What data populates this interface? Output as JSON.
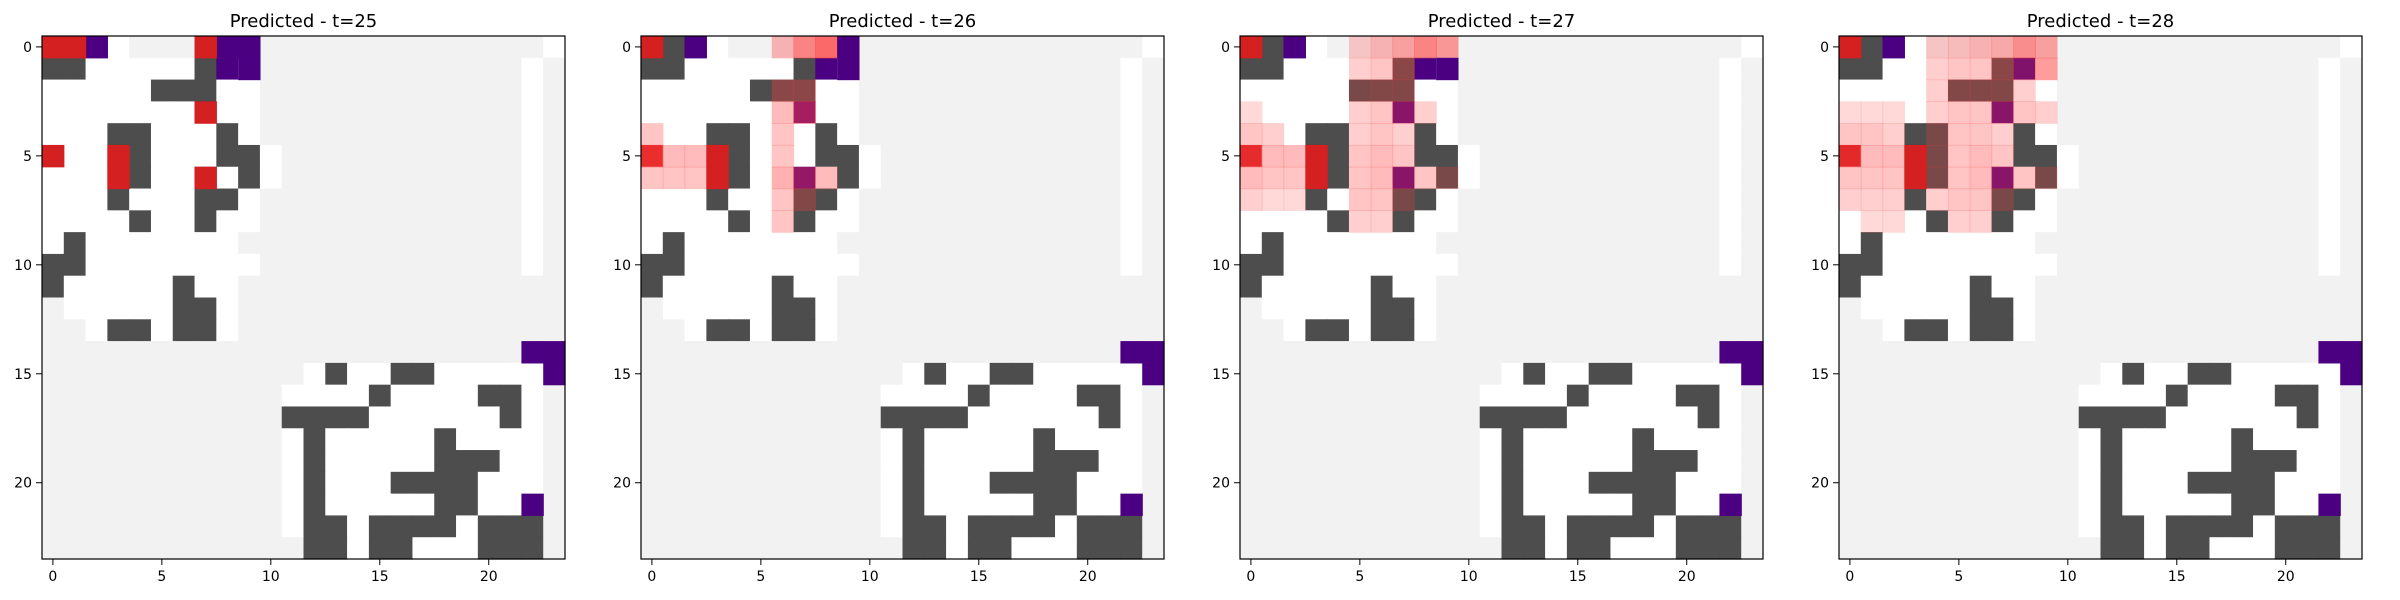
{
  "colors": {
    "wall": "#4d4d4d",
    "free": "#ffffff",
    "unknown": "#f2f2f2",
    "goal": "#4b0082",
    "agent": "#d42020",
    "axis": "#000000"
  },
  "chart_data": [
    {
      "type": "heatmap",
      "title": "Predicted - t=25",
      "xticks": [
        0,
        5,
        10,
        15,
        20
      ],
      "yticks": [
        0,
        5,
        10,
        15,
        20
      ],
      "grid": false,
      "cols": 24,
      "rows": 24,
      "cells": [
        "AWGUFFFFFFFFFFFFFFFFFFFU",
        "WW.....WGUFFFFFFFFFFFFUF",
        ".....WWW..FFFFFFFFFFFFUF",
        ".......G..FFFFFFFFFFFFUF",
        "...WW...W.FFFFFFFFFFFFUF",
        "A..RW...WW.FFFFFFFFFFFUF",
        "...RW..G.W.FFFFFFFFFFFUF",
        "...W...WW.FFFFFFFFFFFFUF",
        "....W..W..FFFFFFFFFFFFUF",
        ".W.......FFFFFFFFFFFFFUF",
        "WW........FFFFFFFFFFFFUF",
        "W.....W..FFFFFFFFFFFFFFF",
        "F.....WW.FFFFFFFFFFFFFFF",
        "FF.WW.WW.FFFFFFFFFFFFFFF",
        "FFFFFFFFFFFFFFFFFFFFFFUU",
        "FFFFFFFFFFFF.W..WW..UUUU",
        "FFFFFFFFFFF....W....WWUF",
        "FFFFFFFFFFFWWWW......W.F",
        "FFFFFFFFFFF.W.....W....F",
        "FFFFFFFFFFF.W.....WWW..F",
        "FFFFFFFFFFF.W...WWWW...F",
        "FFFFFFFFFFF.W.....WW..UF",
        "FFFFFFFFFFF.WW.WWWW.WWWF",
        "FFFFFFFFFFFFWW.WW...WWWF"
      ],
      "agent": [
        [
          0,
          0
        ],
        [
          1,
          0
        ],
        [
          7,
          0
        ],
        [
          7,
          3
        ],
        [
          0,
          5
        ],
        [
          3,
          5
        ],
        [
          3,
          6
        ],
        [
          7,
          6
        ]
      ],
      "goal": [
        [
          2,
          0
        ],
        [
          8,
          0
        ],
        [
          9,
          0
        ],
        [
          9,
          1
        ],
        [
          22,
          14
        ],
        [
          23,
          14
        ],
        [
          23,
          15
        ],
        [
          22,
          21
        ]
      ],
      "heat": []
    },
    {
      "type": "heatmap",
      "title": "Predicted - t=26",
      "xticks": [
        0,
        5,
        10,
        15,
        20
      ],
      "yticks": [
        0,
        5,
        10,
        15,
        20
      ],
      "grid": false,
      "cols": 24,
      "rows": 24,
      "cells": "same",
      "agent": [
        [
          0,
          0
        ],
        [
          3,
          5
        ],
        [
          3,
          6
        ]
      ],
      "goal": [
        [
          2,
          0
        ],
        [
          9,
          0
        ],
        [
          9,
          1
        ],
        [
          22,
          14
        ],
        [
          23,
          14
        ],
        [
          23,
          15
        ],
        [
          22,
          21
        ]
      ],
      "heat": [
        [
          6,
          0,
          0.35
        ],
        [
          7,
          0,
          0.6
        ],
        [
          8,
          0,
          0.75
        ],
        [
          6,
          2,
          0.35
        ],
        [
          7,
          2,
          0.35
        ],
        [
          6,
          3,
          0.35
        ],
        [
          7,
          3,
          0.5
        ],
        [
          0,
          4,
          0.3
        ],
        [
          0,
          5,
          0.5
        ],
        [
          1,
          5,
          0.35
        ],
        [
          2,
          5,
          0.35
        ],
        [
          0,
          6,
          0.3
        ],
        [
          1,
          6,
          0.3
        ],
        [
          2,
          6,
          0.3
        ],
        [
          6,
          4,
          0.3
        ],
        [
          6,
          5,
          0.3
        ],
        [
          6,
          6,
          0.4
        ],
        [
          7,
          6,
          0.4
        ],
        [
          8,
          6,
          0.35
        ],
        [
          6,
          7,
          0.3
        ],
        [
          7,
          7,
          0.3
        ],
        [
          6,
          8,
          0.3
        ]
      ]
    },
    {
      "type": "heatmap",
      "title": "Predicted - t=27",
      "xticks": [
        0,
        5,
        10,
        15,
        20
      ],
      "yticks": [
        0,
        5,
        10,
        15,
        20
      ],
      "grid": false,
      "cols": 24,
      "rows": 24,
      "cells": "same",
      "agent": [
        [
          0,
          0
        ],
        [
          3,
          5
        ],
        [
          3,
          6
        ]
      ],
      "goal": [
        [
          2,
          0
        ],
        [
          9,
          1
        ],
        [
          22,
          14
        ],
        [
          23,
          14
        ],
        [
          23,
          15
        ],
        [
          22,
          21
        ]
      ],
      "heat": [
        [
          5,
          0,
          0.25
        ],
        [
          6,
          0,
          0.35
        ],
        [
          7,
          0,
          0.45
        ],
        [
          8,
          0,
          0.6
        ],
        [
          9,
          0,
          0.5
        ],
        [
          5,
          1,
          0.25
        ],
        [
          6,
          1,
          0.3
        ],
        [
          7,
          1,
          0.35
        ],
        [
          5,
          2,
          0.25
        ],
        [
          6,
          2,
          0.3
        ],
        [
          7,
          2,
          0.3
        ],
        [
          5,
          3,
          0.25
        ],
        [
          6,
          3,
          0.3
        ],
        [
          7,
          3,
          0.35
        ],
        [
          8,
          3,
          0.25
        ],
        [
          0,
          3,
          0.2
        ],
        [
          0,
          4,
          0.3
        ],
        [
          1,
          4,
          0.25
        ],
        [
          0,
          5,
          0.4
        ],
        [
          1,
          5,
          0.35
        ],
        [
          2,
          5,
          0.35
        ],
        [
          0,
          6,
          0.35
        ],
        [
          1,
          6,
          0.3
        ],
        [
          2,
          6,
          0.3
        ],
        [
          0,
          7,
          0.25
        ],
        [
          1,
          7,
          0.2
        ],
        [
          2,
          7,
          0.2
        ],
        [
          5,
          4,
          0.25
        ],
        [
          6,
          4,
          0.3
        ],
        [
          7,
          4,
          0.25
        ],
        [
          5,
          5,
          0.3
        ],
        [
          6,
          5,
          0.35
        ],
        [
          7,
          5,
          0.3
        ],
        [
          5,
          6,
          0.3
        ],
        [
          6,
          6,
          0.35
        ],
        [
          7,
          6,
          0.35
        ],
        [
          8,
          6,
          0.3
        ],
        [
          9,
          6,
          0.25
        ],
        [
          5,
          7,
          0.3
        ],
        [
          6,
          7,
          0.3
        ],
        [
          7,
          7,
          0.25
        ],
        [
          5,
          8,
          0.25
        ],
        [
          6,
          8,
          0.25
        ]
      ]
    },
    {
      "type": "heatmap",
      "title": "Predicted - t=28",
      "xticks": [
        0,
        5,
        10,
        15,
        20
      ],
      "yticks": [
        0,
        5,
        10,
        15,
        20
      ],
      "grid": false,
      "cols": 24,
      "rows": 24,
      "cells": "same",
      "agent": [
        [
          0,
          0
        ],
        [
          3,
          5
        ],
        [
          3,
          6
        ]
      ],
      "goal": [
        [
          2,
          0
        ],
        [
          22,
          14
        ],
        [
          23,
          14
        ],
        [
          23,
          15
        ],
        [
          22,
          21
        ]
      ],
      "heat": [
        [
          4,
          0,
          0.25
        ],
        [
          5,
          0,
          0.3
        ],
        [
          6,
          0,
          0.35
        ],
        [
          7,
          0,
          0.4
        ],
        [
          8,
          0,
          0.55
        ],
        [
          9,
          0,
          0.45
        ],
        [
          4,
          1,
          0.25
        ],
        [
          5,
          1,
          0.3
        ],
        [
          6,
          1,
          0.3
        ],
        [
          7,
          1,
          0.35
        ],
        [
          8,
          1,
          0.3
        ],
        [
          9,
          1,
          0.5
        ],
        [
          4,
          2,
          0.25
        ],
        [
          5,
          2,
          0.3
        ],
        [
          6,
          2,
          0.3
        ],
        [
          7,
          2,
          0.3
        ],
        [
          8,
          2,
          0.25
        ],
        [
          4,
          3,
          0.25
        ],
        [
          5,
          3,
          0.3
        ],
        [
          6,
          3,
          0.3
        ],
        [
          7,
          3,
          0.35
        ],
        [
          8,
          3,
          0.3
        ],
        [
          9,
          3,
          0.25
        ],
        [
          0,
          3,
          0.2
        ],
        [
          1,
          3,
          0.2
        ],
        [
          2,
          3,
          0.2
        ],
        [
          0,
          4,
          0.3
        ],
        [
          1,
          4,
          0.3
        ],
        [
          2,
          4,
          0.25
        ],
        [
          0,
          5,
          0.35
        ],
        [
          1,
          5,
          0.35
        ],
        [
          2,
          5,
          0.35
        ],
        [
          0,
          6,
          0.3
        ],
        [
          1,
          6,
          0.3
        ],
        [
          2,
          6,
          0.3
        ],
        [
          0,
          7,
          0.25
        ],
        [
          1,
          7,
          0.25
        ],
        [
          2,
          7,
          0.25
        ],
        [
          1,
          8,
          0.2
        ],
        [
          2,
          8,
          0.2
        ],
        [
          4,
          4,
          0.25
        ],
        [
          5,
          4,
          0.3
        ],
        [
          6,
          4,
          0.3
        ],
        [
          7,
          4,
          0.25
        ],
        [
          4,
          5,
          0.25
        ],
        [
          5,
          5,
          0.3
        ],
        [
          6,
          5,
          0.35
        ],
        [
          7,
          5,
          0.3
        ],
        [
          4,
          6,
          0.25
        ],
        [
          5,
          6,
          0.3
        ],
        [
          6,
          6,
          0.35
        ],
        [
          7,
          6,
          0.35
        ],
        [
          8,
          6,
          0.3
        ],
        [
          9,
          6,
          0.25
        ],
        [
          4,
          7,
          0.25
        ],
        [
          5,
          7,
          0.3
        ],
        [
          6,
          7,
          0.3
        ],
        [
          7,
          7,
          0.25
        ],
        [
          5,
          8,
          0.25
        ],
        [
          6,
          8,
          0.25
        ]
      ]
    }
  ]
}
